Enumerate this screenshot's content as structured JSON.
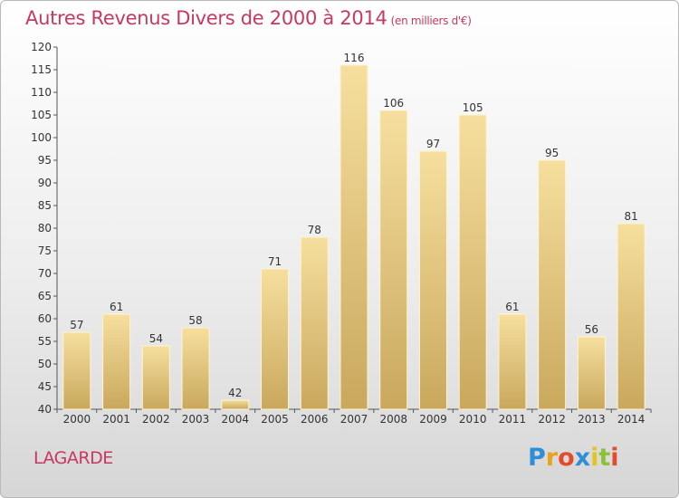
{
  "header": {
    "title": "Autres Revenus Divers de 2000 à 2014",
    "subtitle": "(en milliers d'€)"
  },
  "footer": {
    "place": "LAGARDE",
    "logo": [
      "P",
      "r",
      "o",
      "x",
      "i",
      "t",
      "i"
    ]
  },
  "chart_data": {
    "type": "bar",
    "title": "Autres Revenus Divers de 2000 à 2014",
    "subtitle": "(en milliers d'€)",
    "categories": [
      "2000",
      "2001",
      "2002",
      "2003",
      "2004",
      "2005",
      "2006",
      "2007",
      "2008",
      "2009",
      "2010",
      "2011",
      "2012",
      "2013",
      "2014"
    ],
    "values": [
      57,
      61,
      54,
      58,
      42,
      71,
      78,
      116,
      106,
      97,
      105,
      61,
      95,
      56,
      81
    ],
    "yticks": [
      40,
      45,
      50,
      55,
      60,
      65,
      70,
      75,
      80,
      85,
      90,
      95,
      100,
      105,
      110,
      115,
      120
    ],
    "ylim": [
      40,
      120
    ],
    "grid": false,
    "bar_color": "#e8c97a"
  }
}
